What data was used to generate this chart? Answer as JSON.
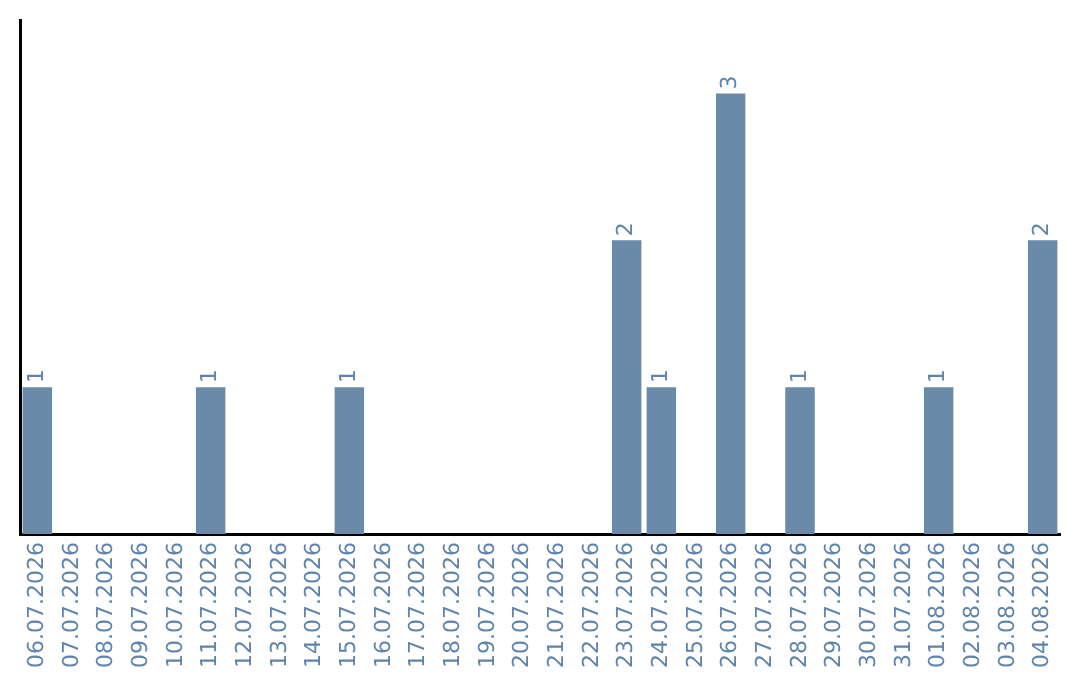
{
  "chart_data": {
    "type": "bar",
    "categories": [
      "06.07.2026",
      "07.07.2026",
      "08.07.2026",
      "09.07.2026",
      "10.07.2026",
      "11.07.2026",
      "12.07.2026",
      "13.07.2026",
      "14.07.2026",
      "15.07.2026",
      "16.07.2026",
      "17.07.2026",
      "18.07.2026",
      "19.07.2026",
      "20.07.2026",
      "21.07.2026",
      "22.07.2026",
      "23.07.2026",
      "24.07.2026",
      "25.07.2026",
      "26.07.2026",
      "27.07.2026",
      "28.07.2026",
      "29.07.2026",
      "30.07.2026",
      "31.07.2026",
      "01.08.2026",
      "02.08.2026",
      "03.08.2026",
      "04.08.2026"
    ],
    "values": [
      1,
      0,
      0,
      0,
      0,
      1,
      0,
      0,
      0,
      1,
      0,
      0,
      0,
      0,
      0,
      0,
      0,
      2,
      1,
      0,
      3,
      0,
      1,
      0,
      0,
      0,
      1,
      0,
      0,
      2
    ],
    "value_labels": [
      "1",
      null,
      null,
      null,
      null,
      "1",
      null,
      null,
      null,
      "1",
      null,
      null,
      null,
      null,
      null,
      null,
      null,
      "2",
      "1",
      null,
      "3",
      null,
      "1",
      null,
      null,
      null,
      "1",
      null,
      null,
      "2"
    ],
    "color": "#6a8aaa",
    "tick_labels": "x",
    "grid": false,
    "legend": false
  }
}
